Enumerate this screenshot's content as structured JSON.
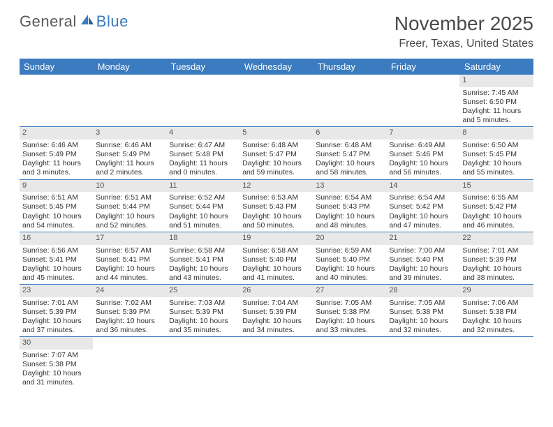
{
  "logo": {
    "text1": "General",
    "text2": "Blue"
  },
  "title": "November 2025",
  "location": "Freer, Texas, United States",
  "colors": {
    "header_bg": "#3b7bbf",
    "header_text": "#ffffff",
    "daynum_bg": "#e8e8e8",
    "row_divider": "#3b7bbf",
    "text": "#333333",
    "logo_gray": "#5a5a5a",
    "logo_blue": "#3b7bbf"
  },
  "typography": {
    "title_fontsize": 28,
    "location_fontsize": 16,
    "header_fontsize": 13,
    "cell_fontsize": 10.5
  },
  "weekdays": [
    "Sunday",
    "Monday",
    "Tuesday",
    "Wednesday",
    "Thursday",
    "Friday",
    "Saturday"
  ],
  "grid": [
    [
      null,
      null,
      null,
      null,
      null,
      null,
      {
        "n": "1",
        "sr": "Sunrise: 7:45 AM",
        "ss": "Sunset: 6:50 PM",
        "d1": "Daylight: 11 hours",
        "d2": "and 5 minutes."
      }
    ],
    [
      {
        "n": "2",
        "sr": "Sunrise: 6:46 AM",
        "ss": "Sunset: 5:49 PM",
        "d1": "Daylight: 11 hours",
        "d2": "and 3 minutes."
      },
      {
        "n": "3",
        "sr": "Sunrise: 6:46 AM",
        "ss": "Sunset: 5:49 PM",
        "d1": "Daylight: 11 hours",
        "d2": "and 2 minutes."
      },
      {
        "n": "4",
        "sr": "Sunrise: 6:47 AM",
        "ss": "Sunset: 5:48 PM",
        "d1": "Daylight: 11 hours",
        "d2": "and 0 minutes."
      },
      {
        "n": "5",
        "sr": "Sunrise: 6:48 AM",
        "ss": "Sunset: 5:47 PM",
        "d1": "Daylight: 10 hours",
        "d2": "and 59 minutes."
      },
      {
        "n": "6",
        "sr": "Sunrise: 6:48 AM",
        "ss": "Sunset: 5:47 PM",
        "d1": "Daylight: 10 hours",
        "d2": "and 58 minutes."
      },
      {
        "n": "7",
        "sr": "Sunrise: 6:49 AM",
        "ss": "Sunset: 5:46 PM",
        "d1": "Daylight: 10 hours",
        "d2": "and 56 minutes."
      },
      {
        "n": "8",
        "sr": "Sunrise: 6:50 AM",
        "ss": "Sunset: 5:45 PM",
        "d1": "Daylight: 10 hours",
        "d2": "and 55 minutes."
      }
    ],
    [
      {
        "n": "9",
        "sr": "Sunrise: 6:51 AM",
        "ss": "Sunset: 5:45 PM",
        "d1": "Daylight: 10 hours",
        "d2": "and 54 minutes."
      },
      {
        "n": "10",
        "sr": "Sunrise: 6:51 AM",
        "ss": "Sunset: 5:44 PM",
        "d1": "Daylight: 10 hours",
        "d2": "and 52 minutes."
      },
      {
        "n": "11",
        "sr": "Sunrise: 6:52 AM",
        "ss": "Sunset: 5:44 PM",
        "d1": "Daylight: 10 hours",
        "d2": "and 51 minutes."
      },
      {
        "n": "12",
        "sr": "Sunrise: 6:53 AM",
        "ss": "Sunset: 5:43 PM",
        "d1": "Daylight: 10 hours",
        "d2": "and 50 minutes."
      },
      {
        "n": "13",
        "sr": "Sunrise: 6:54 AM",
        "ss": "Sunset: 5:43 PM",
        "d1": "Daylight: 10 hours",
        "d2": "and 48 minutes."
      },
      {
        "n": "14",
        "sr": "Sunrise: 6:54 AM",
        "ss": "Sunset: 5:42 PM",
        "d1": "Daylight: 10 hours",
        "d2": "and 47 minutes."
      },
      {
        "n": "15",
        "sr": "Sunrise: 6:55 AM",
        "ss": "Sunset: 5:42 PM",
        "d1": "Daylight: 10 hours",
        "d2": "and 46 minutes."
      }
    ],
    [
      {
        "n": "16",
        "sr": "Sunrise: 6:56 AM",
        "ss": "Sunset: 5:41 PM",
        "d1": "Daylight: 10 hours",
        "d2": "and 45 minutes."
      },
      {
        "n": "17",
        "sr": "Sunrise: 6:57 AM",
        "ss": "Sunset: 5:41 PM",
        "d1": "Daylight: 10 hours",
        "d2": "and 44 minutes."
      },
      {
        "n": "18",
        "sr": "Sunrise: 6:58 AM",
        "ss": "Sunset: 5:41 PM",
        "d1": "Daylight: 10 hours",
        "d2": "and 43 minutes."
      },
      {
        "n": "19",
        "sr": "Sunrise: 6:58 AM",
        "ss": "Sunset: 5:40 PM",
        "d1": "Daylight: 10 hours",
        "d2": "and 41 minutes."
      },
      {
        "n": "20",
        "sr": "Sunrise: 6:59 AM",
        "ss": "Sunset: 5:40 PM",
        "d1": "Daylight: 10 hours",
        "d2": "and 40 minutes."
      },
      {
        "n": "21",
        "sr": "Sunrise: 7:00 AM",
        "ss": "Sunset: 5:40 PM",
        "d1": "Daylight: 10 hours",
        "d2": "and 39 minutes."
      },
      {
        "n": "22",
        "sr": "Sunrise: 7:01 AM",
        "ss": "Sunset: 5:39 PM",
        "d1": "Daylight: 10 hours",
        "d2": "and 38 minutes."
      }
    ],
    [
      {
        "n": "23",
        "sr": "Sunrise: 7:01 AM",
        "ss": "Sunset: 5:39 PM",
        "d1": "Daylight: 10 hours",
        "d2": "and 37 minutes."
      },
      {
        "n": "24",
        "sr": "Sunrise: 7:02 AM",
        "ss": "Sunset: 5:39 PM",
        "d1": "Daylight: 10 hours",
        "d2": "and 36 minutes."
      },
      {
        "n": "25",
        "sr": "Sunrise: 7:03 AM",
        "ss": "Sunset: 5:39 PM",
        "d1": "Daylight: 10 hours",
        "d2": "and 35 minutes."
      },
      {
        "n": "26",
        "sr": "Sunrise: 7:04 AM",
        "ss": "Sunset: 5:39 PM",
        "d1": "Daylight: 10 hours",
        "d2": "and 34 minutes."
      },
      {
        "n": "27",
        "sr": "Sunrise: 7:05 AM",
        "ss": "Sunset: 5:38 PM",
        "d1": "Daylight: 10 hours",
        "d2": "and 33 minutes."
      },
      {
        "n": "28",
        "sr": "Sunrise: 7:05 AM",
        "ss": "Sunset: 5:38 PM",
        "d1": "Daylight: 10 hours",
        "d2": "and 32 minutes."
      },
      {
        "n": "29",
        "sr": "Sunrise: 7:06 AM",
        "ss": "Sunset: 5:38 PM",
        "d1": "Daylight: 10 hours",
        "d2": "and 32 minutes."
      }
    ],
    [
      {
        "n": "30",
        "sr": "Sunrise: 7:07 AM",
        "ss": "Sunset: 5:38 PM",
        "d1": "Daylight: 10 hours",
        "d2": "and 31 minutes."
      },
      null,
      null,
      null,
      null,
      null,
      null
    ]
  ]
}
